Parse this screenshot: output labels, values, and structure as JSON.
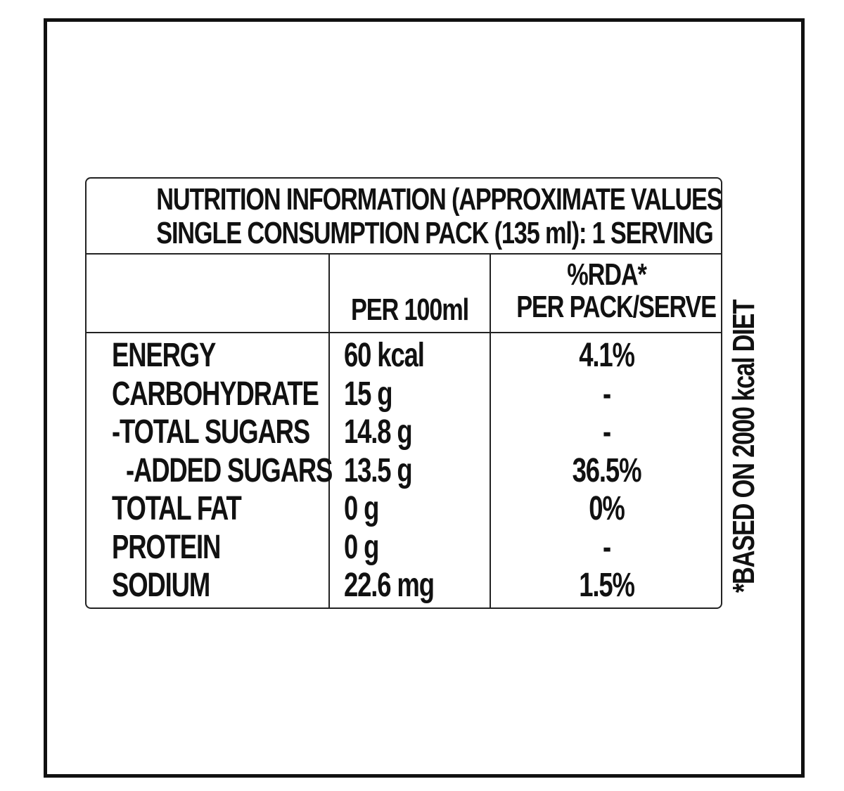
{
  "header": {
    "line1": "NUTRITION INFORMATION (APPROXIMATE VALUES)",
    "line2": "SINGLE CONSUMPTION PACK (135 ml): 1 SERVING"
  },
  "columns": {
    "per100": "PER 100ml",
    "rda_line1": "%RDA*",
    "rda_line2": "PER PACK/SERVE"
  },
  "rows": [
    {
      "nutrient": "ENERGY",
      "per100": "60 kcal",
      "rda": "4.1%"
    },
    {
      "nutrient": "CARBOHYDRATE",
      "per100": "15 g",
      "rda": "-"
    },
    {
      "nutrient": "-TOTAL SUGARS",
      "per100": "14.8 g",
      "rda": "-"
    },
    {
      "nutrient": "-ADDED SUGARS",
      "per100": "13.5 g",
      "rda": "36.5%"
    },
    {
      "nutrient": "TOTAL FAT",
      "per100": "0 g",
      "rda": "0%"
    },
    {
      "nutrient": "PROTEIN",
      "per100": "0 g",
      "rda": "-"
    },
    {
      "nutrient": "SODIUM",
      "per100": "22.6 mg",
      "rda": "1.5%"
    }
  ],
  "footnote": "*BASED ON 2000 kcal DIET"
}
